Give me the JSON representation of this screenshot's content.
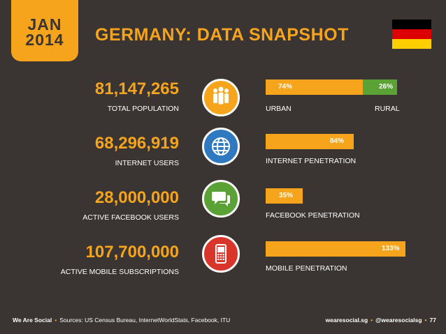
{
  "header": {
    "month": "JAN",
    "year": "2014",
    "title": "GERMANY: DATA SNAPSHOT",
    "flag_colors": [
      "#000000",
      "#dd0000",
      "#ffce00"
    ]
  },
  "colors": {
    "background": "#3a3532",
    "accent": "#f7a41d",
    "rural_green": "#5aa236",
    "icon_orange": "#f7a41d",
    "icon_blue": "#2f79c0",
    "icon_green": "#5aa236",
    "icon_red": "#d9352a"
  },
  "rows": [
    {
      "value": "81,147,265",
      "label": "TOTAL POPULATION",
      "icon": "people-icon",
      "bar": {
        "urban_pct": 74,
        "rural_pct": 26,
        "urban_text": "74%",
        "rural_text": "26%",
        "left_label": "URBAN",
        "right_label": "RURAL"
      }
    },
    {
      "value": "68,296,919",
      "label": "INTERNET USERS",
      "icon": "globe-icon",
      "bar": {
        "pct": 84,
        "text": "84%",
        "label": "INTERNET PENETRATION"
      }
    },
    {
      "value": "28,000,000",
      "label": "ACTIVE FACEBOOK USERS",
      "icon": "chat-icon",
      "bar": {
        "pct": 35,
        "text": "35%",
        "label": "FACEBOOK PENETRATION"
      }
    },
    {
      "value": "107,700,000",
      "label": "ACTIVE MOBILE SUBSCRIPTIONS",
      "icon": "mobile-phone-icon",
      "bar": {
        "pct": 133,
        "text": "133%",
        "label": "MOBILE PENETRATION"
      }
    }
  ],
  "footer": {
    "brand": "We Are Social",
    "sources": "Sources: US Census Bureau, InternetWorldStats, Facebook, ITU",
    "site": "wearesocial.sg",
    "handle": "@wearesocialsg",
    "page": "77"
  }
}
